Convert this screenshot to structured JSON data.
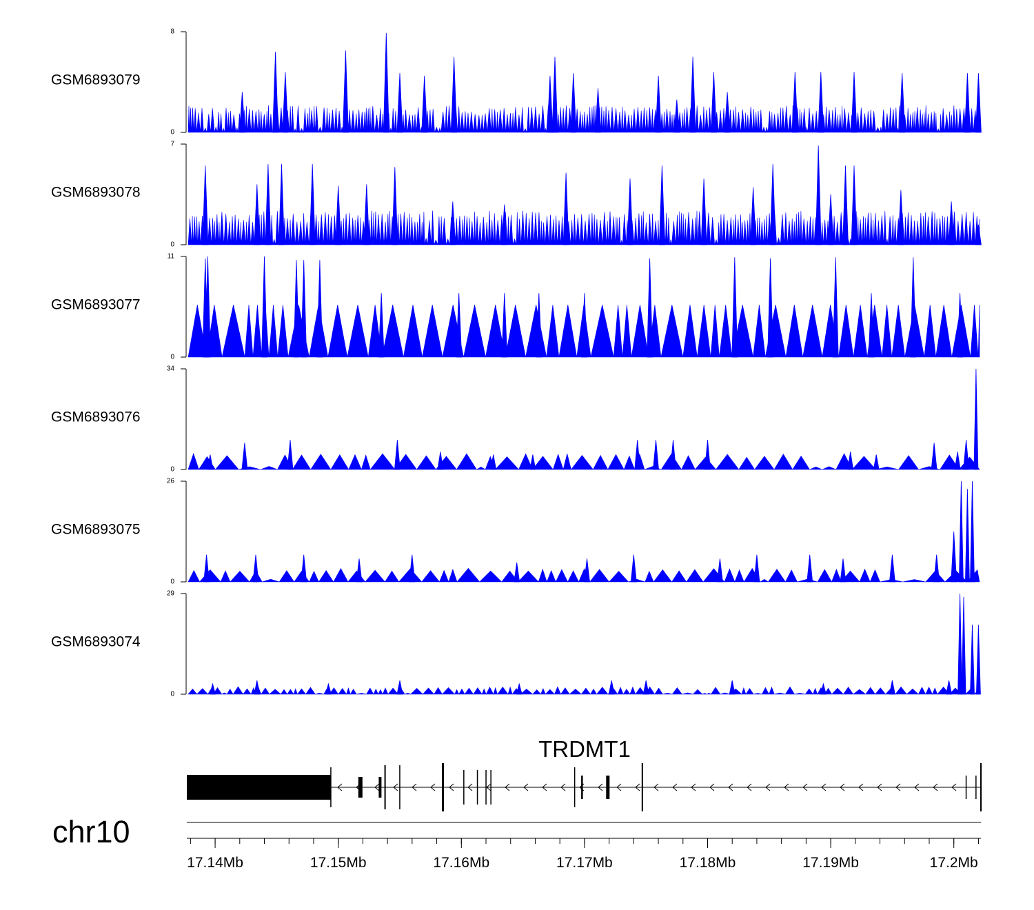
{
  "chart_data": {
    "type": "area",
    "title": "",
    "chromosome": "chr10",
    "gene": {
      "name": "TRDMT1",
      "strand": "-",
      "start": 17.1377,
      "end": 17.2022
    },
    "xaxis": {
      "unit": "Mb",
      "range": [
        17.1377,
        17.2022
      ],
      "ticks": [
        17.14,
        17.15,
        17.16,
        17.17,
        17.18,
        17.19,
        17.2
      ],
      "tick_labels": [
        "17.14Mb",
        "17.15Mb",
        "17.16Mb",
        "17.17Mb",
        "17.18Mb",
        "17.19Mb",
        "17.2Mb"
      ]
    },
    "colors": {
      "fill": "#0000ff",
      "gene": "#000000"
    },
    "series": [
      {
        "name": "GSM6893079",
        "ymax": 8,
        "ymin": 0,
        "peaks": [
          [
            17.1422,
            3.2
          ],
          [
            17.1449,
            6.4
          ],
          [
            17.1457,
            4.8
          ],
          [
            17.1506,
            6.5
          ],
          [
            17.1539,
            7.9
          ],
          [
            17.155,
            4.7
          ],
          [
            17.157,
            4.5
          ],
          [
            17.1594,
            6.0
          ],
          [
            17.1672,
            4.5
          ],
          [
            17.1676,
            6.0
          ],
          [
            17.1691,
            4.7
          ],
          [
            17.1711,
            3.5
          ],
          [
            17.176,
            4.5
          ],
          [
            17.1775,
            2.6
          ],
          [
            17.1788,
            6.0
          ],
          [
            17.1805,
            4.8
          ],
          [
            17.1816,
            3.2
          ],
          [
            17.1871,
            4.8
          ],
          [
            17.1892,
            4.8
          ],
          [
            17.1919,
            4.8
          ],
          [
            17.1958,
            4.7
          ],
          [
            17.2011,
            4.7
          ],
          [
            17.202,
            4.7
          ]
        ]
      },
      {
        "name": "GSM6893078",
        "ymax": 7,
        "ymin": 0,
        "peaks": [
          [
            17.1392,
            5.5
          ],
          [
            17.1434,
            4.2
          ],
          [
            17.1443,
            5.6
          ],
          [
            17.1454,
            5.6
          ],
          [
            17.1479,
            5.6
          ],
          [
            17.15,
            4.1
          ],
          [
            17.1523,
            4.2
          ],
          [
            17.1546,
            5.4
          ],
          [
            17.1593,
            3.0
          ],
          [
            17.1635,
            2.8
          ],
          [
            17.1685,
            5.0
          ],
          [
            17.1737,
            4.6
          ],
          [
            17.1763,
            5.5
          ],
          [
            17.1797,
            4.6
          ],
          [
            17.1837,
            4.0
          ],
          [
            17.1853,
            5.6
          ],
          [
            17.189,
            6.9
          ],
          [
            17.19,
            3.5
          ],
          [
            17.1912,
            5.5
          ],
          [
            17.1919,
            5.5
          ],
          [
            17.1957,
            3.8
          ],
          [
            17.1998,
            3.0
          ],
          [
            17.202,
            1.4
          ]
        ]
      },
      {
        "name": "GSM6893077",
        "ymax": 11,
        "ymin": 0,
        "peaks": [
          [
            17.1392,
            10.8
          ],
          [
            17.1394,
            11.0
          ],
          [
            17.144,
            11.0
          ],
          [
            17.1466,
            10.6
          ],
          [
            17.1472,
            10.6
          ],
          [
            17.1485,
            10.6
          ],
          [
            17.1535,
            7.0
          ],
          [
            17.1598,
            7.0
          ],
          [
            17.1635,
            7.0
          ],
          [
            17.1663,
            7.0
          ],
          [
            17.17,
            7.0
          ],
          [
            17.1753,
            10.8
          ],
          [
            17.1822,
            10.9
          ],
          [
            17.1851,
            10.8
          ],
          [
            17.1904,
            10.9
          ],
          [
            17.1933,
            7.0
          ],
          [
            17.1967,
            10.9
          ],
          [
            17.2005,
            7.0
          ]
        ]
      },
      {
        "name": "GSM6893076",
        "ymax": 34,
        "ymin": 0,
        "peaks": [
          [
            17.1396,
            5
          ],
          [
            17.1424,
            9
          ],
          [
            17.1461,
            10
          ],
          [
            17.1548,
            10
          ],
          [
            17.1583,
            6
          ],
          [
            17.1626,
            5
          ],
          [
            17.1658,
            5
          ],
          [
            17.1743,
            10
          ],
          [
            17.1758,
            10
          ],
          [
            17.1772,
            10
          ],
          [
            17.18,
            10
          ],
          [
            17.1916,
            6
          ],
          [
            17.1937,
            5
          ],
          [
            17.1984,
            9
          ],
          [
            17.2003,
            6
          ],
          [
            17.201,
            10
          ],
          [
            17.2018,
            34
          ]
        ]
      },
      {
        "name": "GSM6893075",
        "ymax": 26,
        "ymin": 0,
        "peaks": [
          [
            17.1393,
            7
          ],
          [
            17.1433,
            7
          ],
          [
            17.1472,
            7
          ],
          [
            17.1517,
            6
          ],
          [
            17.156,
            7
          ],
          [
            17.1645,
            5
          ],
          [
            17.1702,
            6
          ],
          [
            17.174,
            7
          ],
          [
            17.181,
            6
          ],
          [
            17.184,
            7
          ],
          [
            17.1883,
            7
          ],
          [
            17.191,
            6
          ],
          [
            17.195,
            7
          ],
          [
            17.1986,
            7
          ],
          [
            17.2,
            13
          ],
          [
            17.2006,
            26
          ],
          [
            17.2011,
            24
          ],
          [
            17.2015,
            26
          ]
        ]
      },
      {
        "name": "GSM6893074",
        "ymax": 29,
        "ymin": 0,
        "peaks": [
          [
            17.1398,
            3
          ],
          [
            17.1434,
            4
          ],
          [
            17.1492,
            3
          ],
          [
            17.155,
            4
          ],
          [
            17.1647,
            3
          ],
          [
            17.1722,
            4
          ],
          [
            17.175,
            4
          ],
          [
            17.182,
            4
          ],
          [
            17.1894,
            3
          ],
          [
            17.195,
            4
          ],
          [
            17.1996,
            4
          ],
          [
            17.2005,
            29
          ],
          [
            17.2008,
            28
          ],
          [
            17.2015,
            20
          ],
          [
            17.202,
            20
          ]
        ]
      }
    ]
  }
}
